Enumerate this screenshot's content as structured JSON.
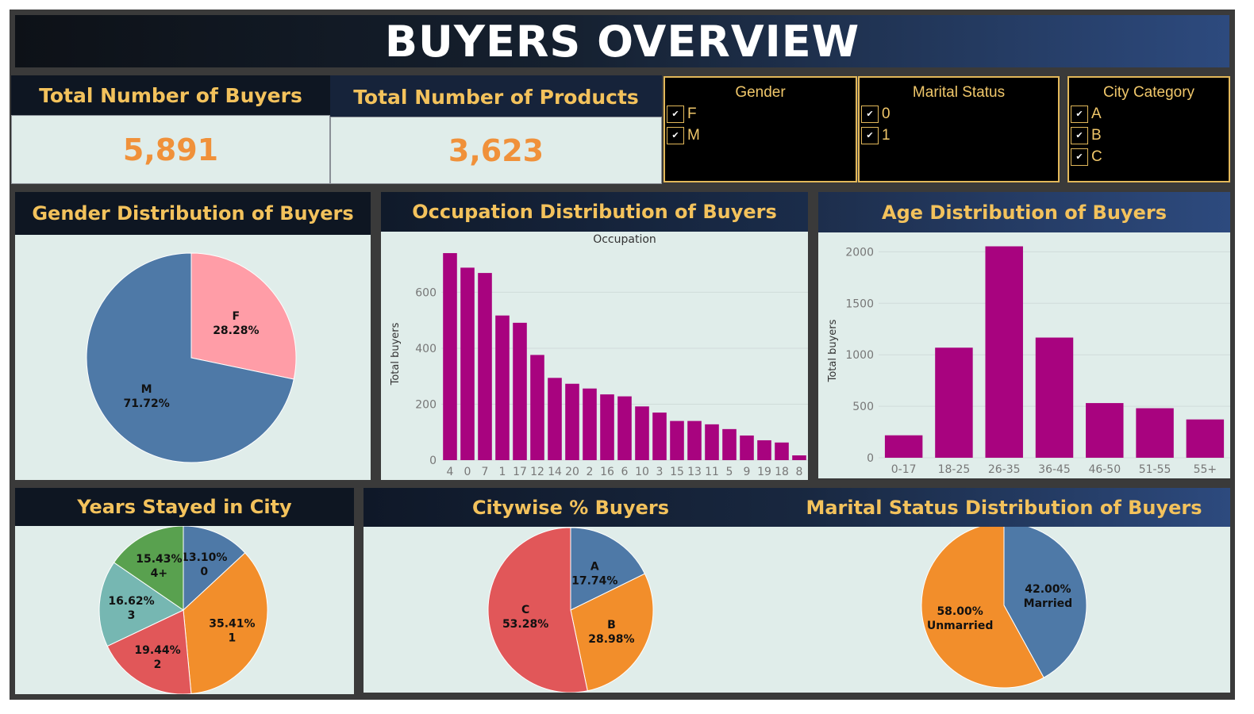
{
  "header": {
    "title": "BUYERS OVERVIEW"
  },
  "kpis": [
    {
      "label": "Total Number of Buyers",
      "value": "5,891"
    },
    {
      "label": "Total Number of Products",
      "value": "3,623"
    }
  ],
  "filters": [
    {
      "title": "Gender",
      "options": [
        "F",
        "M"
      ]
    },
    {
      "title": "Marital Status",
      "options": [
        "0",
        "1"
      ]
    },
    {
      "title": "City Category",
      "options": [
        "A",
        "B",
        "C"
      ]
    }
  ],
  "colors": {
    "title_gold": "#f3c25c",
    "kpi_orange": "#f0913a",
    "panel_bg": "#e0edea",
    "bar_magenta": "#a8037f",
    "blue": "#4e79a7",
    "pink": "#ff9da7",
    "orange": "#f28e2b",
    "red": "#e15759",
    "teal": "#76b7b2",
    "green": "#59a14f"
  },
  "panels": {
    "gender": "Gender Distribution of Buyers",
    "occupation": "Occupation Distribution of Buyers",
    "age": "Age Distribution of Buyers",
    "years": "Years Stayed in City",
    "citywise": "Citywise % Buyers",
    "marital": "Marital Status Distribution of Buyers"
  },
  "chart_data": [
    {
      "id": "gender",
      "type": "pie",
      "title": "Gender Distribution of Buyers",
      "slices": [
        {
          "label": "F",
          "value": 28.28,
          "text": "28.28%",
          "color": "#ff9da7"
        },
        {
          "label": "M",
          "value": 71.72,
          "text": "71.72%",
          "color": "#4e79a7"
        }
      ]
    },
    {
      "id": "occupation",
      "type": "bar",
      "title": "Occupation Distribution of Buyers",
      "xlabel": "Occupation",
      "ylabel": "Total buyers",
      "categories": [
        "4",
        "0",
        "7",
        "1",
        "17",
        "12",
        "14",
        "20",
        "2",
        "16",
        "6",
        "10",
        "3",
        "15",
        "13",
        "11",
        "5",
        "9",
        "19",
        "18",
        "8"
      ],
      "values": [
        740,
        688,
        669,
        517,
        491,
        376,
        294,
        273,
        256,
        235,
        228,
        192,
        170,
        140,
        140,
        128,
        111,
        88,
        71,
        63,
        17
      ],
      "yticks": [
        0,
        200,
        400,
        600
      ],
      "ylim": [
        0,
        760
      ],
      "grid": true
    },
    {
      "id": "age",
      "type": "bar",
      "title": "Age Distribution of Buyers",
      "xlabel": "",
      "ylabel": "Total buyers",
      "categories": [
        "0-17",
        "18-25",
        "26-35",
        "36-45",
        "46-50",
        "51-55",
        "55+"
      ],
      "values": [
        218,
        1069,
        2053,
        1167,
        531,
        481,
        372
      ],
      "yticks": [
        0,
        500,
        1000,
        1500,
        2000
      ],
      "ylim": [
        0,
        2080
      ],
      "grid": true
    },
    {
      "id": "years",
      "type": "pie",
      "title": "Years Stayed in City",
      "slices": [
        {
          "label": "0",
          "value": 13.1,
          "text": "13.10%",
          "color": "#4e79a7"
        },
        {
          "label": "1",
          "value": 35.41,
          "text": "35.41%",
          "color": "#f28e2b"
        },
        {
          "label": "2",
          "value": 19.44,
          "text": "19.44%",
          "color": "#e15759"
        },
        {
          "label": "3",
          "value": 16.62,
          "text": "16.62%",
          "color": "#76b7b2"
        },
        {
          "label": "4+",
          "value": 15.43,
          "text": "15.43%",
          "color": "#59a14f"
        }
      ]
    },
    {
      "id": "citywise",
      "type": "pie",
      "title": "Citywise % Buyers",
      "slices": [
        {
          "label": "A",
          "value": 17.74,
          "text": "17.74%",
          "color": "#4e79a7"
        },
        {
          "label": "B",
          "value": 28.98,
          "text": "28.98%",
          "color": "#f28e2b"
        },
        {
          "label": "C",
          "value": 53.28,
          "text": "53.28%",
          "color": "#e15759"
        }
      ]
    },
    {
      "id": "marital",
      "type": "pie",
      "title": "Marital Status Distribution of Buyers",
      "slices": [
        {
          "label": "Married",
          "value": 42.0,
          "text": "42.00%",
          "color": "#4e79a7"
        },
        {
          "label": "Unmarried",
          "value": 58.0,
          "text": "58.00%",
          "color": "#f28e2b"
        }
      ]
    }
  ]
}
